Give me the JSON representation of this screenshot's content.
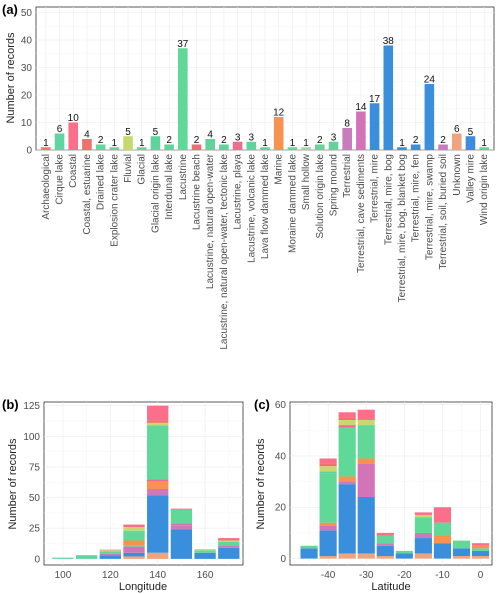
{
  "colors": {
    "Archaeological": "#f8766d",
    "Cirque lake": "#61d4a1",
    "Coastal": "#fb6f8b",
    "Coastal, estuarine": "#f0706c",
    "Drained lake": "#63d69b",
    "Explosion crater lake": "#63d69b",
    "Fluvial": "#c6d96f",
    "Glacial": "#63d69b",
    "Glacial origin lake": "#5fd49a",
    "Interdunal lake": "#5fd49a",
    "Lacustrine": "#5fd898",
    "Lacustrine beach": "#f06b72",
    "Lacustrine, natural open-water": "#5fd49a",
    "Lacustrine, natural open-water, tectonic lake": "#5fd49a",
    "Lacustrine, playa": "#f06b8c",
    "Lacustrine, volcanic lake": "#5fd49a",
    "Lava flow dammed lake": "#5fd49a",
    "Marine": "#f7934f",
    "Moraine dammed lake": "#63d69b",
    "Small hollow": "#a0d6a8",
    "Solution origin lake": "#63d69b",
    "Spring mound": "#5fd49a",
    "Terrestrial": "#c77cbe",
    "Terrestrial, cave sediments": "#d374b8",
    "Terrestrial, mire": "#3a8fdc",
    "Terrestrial, mire, bog": "#3a8fdc",
    "Terrestrial, mire, bog, blanket bog": "#3a8fdc",
    "Terrestrial, mire, fen": "#3a8fdc",
    "Terrestrial, mire, swamp": "#3a8fdc",
    "Terrestrial, soil, buried soil": "#c77cbe",
    "Unknown": "#f0a37f",
    "Valley mire": "#3a8fdc",
    "Wind origin lake": "#5fd49a"
  },
  "chart_data": [
    {
      "panel": "(a)",
      "type": "bar",
      "xlabel": "",
      "ylabel": "Number of records",
      "ylim": [
        0,
        52
      ],
      "yticks": [
        0,
        10,
        20,
        30,
        40,
        50
      ],
      "grid": true,
      "categories": [
        "Archaeological",
        "Cirque lake",
        "Coastal",
        "Coastal, estuarine",
        "Drained lake",
        "Explosion crater lake",
        "Fluvial",
        "Glacial",
        "Glacial origin lake",
        "Interdunal lake",
        "Lacustrine",
        "Lacustrine beach",
        "Lacustrine, natural open-water",
        "Lacustrine, natural open-water, tectonic lake",
        "Lacustrine, playa",
        "Lacustrine, volcanic lake",
        "Lava flow dammed lake",
        "Marine",
        "Moraine dammed lake",
        "Small hollow",
        "Solution origin lake",
        "Spring mound",
        "Terrestrial",
        "Terrestrial, cave sediments",
        "Terrestrial, mire",
        "Terrestrial, mire, bog",
        "Terrestrial, mire, bog, blanket bog",
        "Terrestrial, mire, fen",
        "Terrestrial, mire, swamp",
        "Terrestrial, soil, buried soil",
        "Unknown",
        "Valley mire",
        "Wind origin lake"
      ],
      "values": [
        1,
        6,
        10,
        4,
        2,
        1,
        5,
        1,
        5,
        2,
        37,
        2,
        4,
        2,
        3,
        3,
        1,
        12,
        1,
        1,
        2,
        3,
        8,
        14,
        17,
        38,
        1,
        2,
        24,
        2,
        6,
        5,
        1
      ]
    },
    {
      "panel": "(b)",
      "type": "bar",
      "stacked": true,
      "xlabel": "Longitude",
      "ylabel": "Number of records",
      "xlim": [
        92,
        176
      ],
      "ylim": [
        -5,
        128
      ],
      "xticks": [
        100,
        120,
        140,
        160
      ],
      "yticks": [
        0,
        25,
        50,
        75,
        100,
        125
      ],
      "grid": true,
      "bins": [
        {
          "x": 100,
          "segments": [
            [
              "Cirque lake",
              1
            ]
          ]
        },
        {
          "x": 110,
          "segments": [
            [
              "Cirque lake",
              3
            ]
          ]
        },
        {
          "x": 120,
          "segments": [
            [
              "Terrestrial, mire, bog",
              3
            ],
            [
              "Terrestrial",
              1
            ],
            [
              "Lacustrine",
              2
            ],
            [
              "Fluvial",
              1
            ],
            [
              "Coastal",
              0.5
            ]
          ]
        },
        {
          "x": 130,
          "segments": [
            [
              "Unknown",
              2
            ],
            [
              "Terrestrial, mire, bog",
              3
            ],
            [
              "Terrestrial, cave sediments",
              5
            ],
            [
              "Spring mound",
              1
            ],
            [
              "Marine",
              4
            ],
            [
              "Lacustrine",
              7
            ],
            [
              "Glacial origin lake",
              1
            ],
            [
              "Fluvial",
              3
            ],
            [
              "Coastal",
              2
            ]
          ]
        },
        {
          "x": 140,
          "segments": [
            [
              "Unknown",
              5
            ],
            [
              "Terrestrial, mire, bog",
              47
            ],
            [
              "Terrestrial",
              3
            ],
            [
              "Terrestrial, cave sediments",
              2
            ],
            [
              "Marine",
              6
            ],
            [
              "Lacustrine, playa",
              2
            ],
            [
              "Lacustrine",
              43
            ],
            [
              "Glacial origin lake",
              1
            ],
            [
              "Fluvial",
              2
            ],
            [
              "Coastal, estuarine",
              2
            ],
            [
              "Coastal",
              12
            ]
          ]
        },
        {
          "x": 150,
          "segments": [
            [
              "Terrestrial, mire, bog",
              24
            ],
            [
              "Terrestrial",
              3
            ],
            [
              "Terrestrial, cave sediments",
              2
            ],
            [
              "Lacustrine",
              11
            ],
            [
              "Coastal",
              1
            ]
          ]
        },
        {
          "x": 160,
          "segments": [
            [
              "Terrestrial, mire, bog",
              5
            ],
            [
              "Lacustrine",
              2
            ],
            [
              "Fluvial",
              1
            ]
          ]
        },
        {
          "x": 170,
          "segments": [
            [
              "Terrestrial, mire, bog",
              9
            ],
            [
              "Terrestrial",
              2
            ],
            [
              "Lacustrine",
              3
            ],
            [
              "Fluvial",
              1
            ],
            [
              "Coastal",
              2
            ]
          ]
        }
      ]
    },
    {
      "panel": "(c)",
      "type": "bar",
      "stacked": true,
      "xlabel": "Latitude",
      "ylabel": "Number of records",
      "xlim": [
        -50,
        3
      ],
      "ylim": [
        -2.5,
        61
      ],
      "xticks": [
        -40,
        -30,
        -20,
        -10,
        0
      ],
      "yticks": [
        0,
        20,
        40,
        60
      ],
      "grid": true,
      "bins": [
        {
          "x": -45,
          "segments": [
            [
              "Terrestrial, mire, bog",
              4
            ],
            [
              "Lacustrine",
              1
            ]
          ]
        },
        {
          "x": -40,
          "segments": [
            [
              "Unknown",
              1
            ],
            [
              "Terrestrial, mire, bog",
              10
            ],
            [
              "Terrestrial, cave sediments",
              2
            ],
            [
              "Marine",
              1
            ],
            [
              "Lacustrine",
              19
            ],
            [
              "Glacial origin lake",
              1
            ],
            [
              "Fluvial",
              2
            ],
            [
              "Coastal, estuarine",
              1
            ],
            [
              "Coastal",
              2
            ]
          ]
        },
        {
          "x": -35,
          "segments": [
            [
              "Unknown",
              2
            ],
            [
              "Terrestrial, mire, bog",
              27
            ],
            [
              "Terrestrial",
              1
            ],
            [
              "Marine",
              2
            ],
            [
              "Lacustrine",
              19
            ],
            [
              "Lacustrine, playa",
              1
            ],
            [
              "Fluvial",
              2
            ],
            [
              "Coastal, estuarine",
              1
            ],
            [
              "Coastal",
              2
            ]
          ]
        },
        {
          "x": -30,
          "segments": [
            [
              "Unknown",
              2
            ],
            [
              "Terrestrial, mire, bog",
              22
            ],
            [
              "Terrestrial, cave sediments",
              13
            ],
            [
              "Marine",
              2
            ],
            [
              "Lacustrine",
              13
            ],
            [
              "Fluvial",
              2
            ],
            [
              "Coastal",
              4
            ]
          ]
        },
        {
          "x": -25,
          "segments": [
            [
              "Unknown",
              1
            ],
            [
              "Terrestrial, mire, bog",
              4
            ],
            [
              "Terrestrial",
              1
            ],
            [
              "Lacustrine",
              3
            ],
            [
              "Coastal",
              1
            ]
          ]
        },
        {
          "x": -20,
          "segments": [
            [
              "Terrestrial, mire, bog",
              2
            ],
            [
              "Lacustrine",
              1
            ]
          ]
        },
        {
          "x": -15,
          "segments": [
            [
              "Unknown",
              2
            ],
            [
              "Terrestrial, mire, bog",
              6
            ],
            [
              "Terrestrial",
              2
            ],
            [
              "Lacustrine",
              6
            ],
            [
              "Fluvial",
              1
            ],
            [
              "Coastal",
              1
            ]
          ]
        },
        {
          "x": -10,
          "segments": [
            [
              "Terrestrial, mire, bog",
              6
            ],
            [
              "Marine",
              3
            ],
            [
              "Lacustrine",
              5
            ],
            [
              "Coastal",
              6
            ]
          ]
        },
        {
          "x": -5,
          "segments": [
            [
              "Unknown",
              1
            ],
            [
              "Terrestrial, mire, bog",
              3
            ],
            [
              "Lacustrine",
              3
            ]
          ]
        },
        {
          "x": 0,
          "segments": [
            [
              "Unknown",
              1
            ],
            [
              "Terrestrial, mire, bog",
              2
            ],
            [
              "Lacustrine",
              1
            ],
            [
              "Marine",
              1
            ],
            [
              "Coastal",
              1
            ]
          ]
        }
      ]
    }
  ]
}
